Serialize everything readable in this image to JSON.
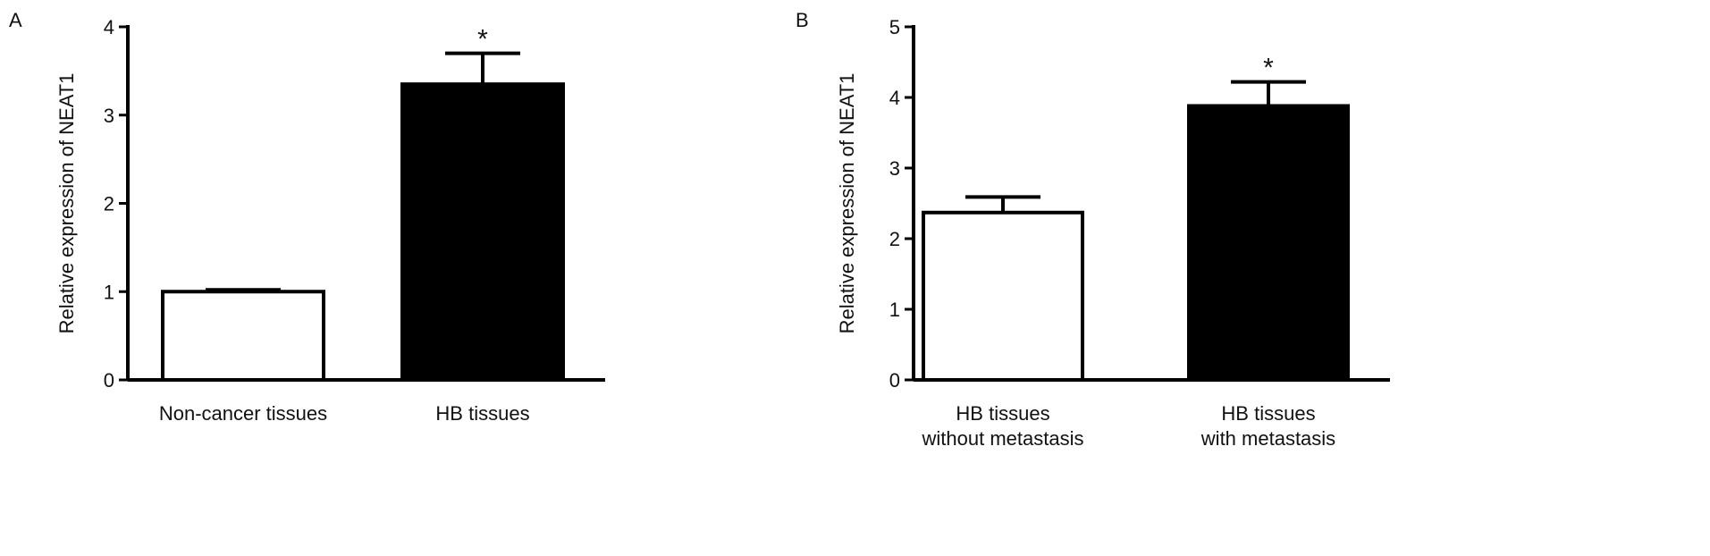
{
  "chart_data": [
    {
      "type": "bar",
      "panel_label": "A",
      "ylabel": "Relative expression of NEAT1",
      "xlabel": "",
      "ylim": [
        0,
        4
      ],
      "yticks": [
        "0",
        "1",
        "2",
        "3",
        "4"
      ],
      "categories": [
        [
          "Non-cancer tissues"
        ],
        [
          "HB tissues"
        ]
      ],
      "values": [
        1.0,
        3.35
      ],
      "error_plus": [
        0.02,
        0.35
      ],
      "bar_fill": [
        "#ffffff",
        "#000000"
      ],
      "significance": [
        "",
        "*"
      ]
    },
    {
      "type": "bar",
      "panel_label": "B",
      "ylabel": "Relative expression of NEAT1",
      "xlabel": "",
      "ylim": [
        0,
        5
      ],
      "yticks": [
        "0",
        "1",
        "2",
        "3",
        "4",
        "5"
      ],
      "categories": [
        [
          "HB tissues",
          "without metastasis"
        ],
        [
          "HB tissues",
          "with metastasis"
        ]
      ],
      "values": [
        2.37,
        3.88
      ],
      "error_plus": [
        0.22,
        0.34
      ],
      "bar_fill": [
        "#ffffff",
        "#000000"
      ],
      "significance": [
        "",
        "*"
      ]
    }
  ]
}
